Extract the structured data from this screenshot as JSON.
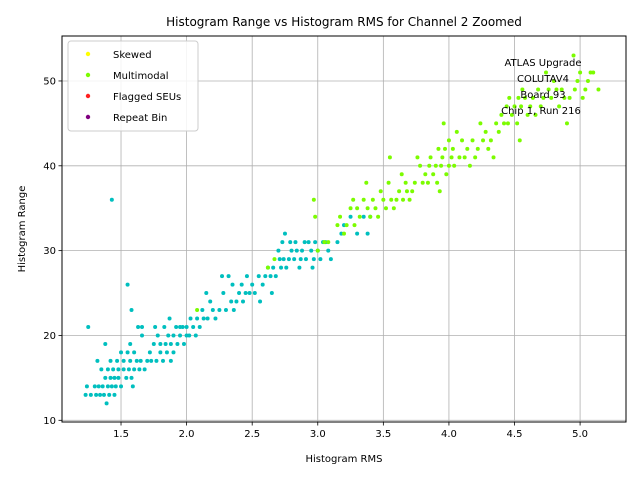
{
  "chart_data": {
    "type": "scatter",
    "title": "Histogram Range vs Histogram RMS for Channel 2 Zoomed",
    "xlabel": "Histogram RMS",
    "ylabel": "Histogram Range",
    "xlim": [
      1.05,
      5.35
    ],
    "ylim": [
      9.8,
      55.3
    ],
    "xticks": [
      "1.5",
      "2.0",
      "2.5",
      "3.0",
      "3.5",
      "4.0",
      "4.5",
      "5.0"
    ],
    "xtick_values": [
      1.5,
      2.0,
      2.5,
      3.0,
      3.5,
      4.0,
      4.5,
      5.0
    ],
    "yticks": [
      "10",
      "20",
      "30",
      "40",
      "50"
    ],
    "ytick_values": [
      10,
      20,
      30,
      40,
      50
    ],
    "grid": true,
    "legend_position": "top-left",
    "legend": [
      {
        "label": "Skewed",
        "color": "#ffff00"
      },
      {
        "label": "Multimodal",
        "color": "#7cfc00"
      },
      {
        "label": "Flagged SEUs",
        "color": "#ff2020"
      },
      {
        "label": "Repeat Bin",
        "color": "#800080"
      }
    ],
    "annotation": [
      "ATLAS Upgrade",
      "COLUTAV4",
      "Board 93",
      "Chip 1, Run 216"
    ],
    "series": [
      {
        "color": "#00bfbf",
        "points": [
          [
            1.23,
            13
          ],
          [
            1.24,
            14
          ],
          [
            1.25,
            21
          ],
          [
            1.27,
            13
          ],
          [
            1.3,
            14
          ],
          [
            1.31,
            13
          ],
          [
            1.32,
            17
          ],
          [
            1.33,
            14
          ],
          [
            1.34,
            13
          ],
          [
            1.35,
            16
          ],
          [
            1.36,
            14
          ],
          [
            1.37,
            13
          ],
          [
            1.38,
            15
          ],
          [
            1.38,
            19
          ],
          [
            1.39,
            12
          ],
          [
            1.4,
            14
          ],
          [
            1.4,
            16
          ],
          [
            1.41,
            13
          ],
          [
            1.42,
            15
          ],
          [
            1.42,
            17
          ],
          [
            1.43,
            14
          ],
          [
            1.43,
            36
          ],
          [
            1.44,
            16
          ],
          [
            1.45,
            13
          ],
          [
            1.45,
            15
          ],
          [
            1.46,
            14
          ],
          [
            1.47,
            17
          ],
          [
            1.48,
            15
          ],
          [
            1.48,
            16
          ],
          [
            1.5,
            14
          ],
          [
            1.5,
            18
          ],
          [
            1.52,
            16
          ],
          [
            1.52,
            17
          ],
          [
            1.54,
            15
          ],
          [
            1.55,
            26
          ],
          [
            1.55,
            18
          ],
          [
            1.56,
            16
          ],
          [
            1.57,
            19
          ],
          [
            1.57,
            17
          ],
          [
            1.58,
            15
          ],
          [
            1.58,
            23
          ],
          [
            1.59,
            14
          ],
          [
            1.6,
            16
          ],
          [
            1.6,
            18
          ],
          [
            1.62,
            17
          ],
          [
            1.63,
            21
          ],
          [
            1.64,
            16
          ],
          [
            1.65,
            17
          ],
          [
            1.66,
            20
          ],
          [
            1.66,
            21
          ],
          [
            1.68,
            16
          ],
          [
            1.7,
            17
          ],
          [
            1.72,
            18
          ],
          [
            1.73,
            17
          ],
          [
            1.75,
            19
          ],
          [
            1.76,
            21
          ],
          [
            1.77,
            17
          ],
          [
            1.78,
            20
          ],
          [
            1.8,
            18
          ],
          [
            1.8,
            19
          ],
          [
            1.82,
            17
          ],
          [
            1.83,
            21
          ],
          [
            1.84,
            19
          ],
          [
            1.85,
            18
          ],
          [
            1.86,
            20
          ],
          [
            1.87,
            22
          ],
          [
            1.88,
            19
          ],
          [
            1.88,
            17
          ],
          [
            1.9,
            20
          ],
          [
            1.9,
            18
          ],
          [
            1.92,
            21
          ],
          [
            1.93,
            19
          ],
          [
            1.95,
            20
          ],
          [
            1.95,
            21
          ],
          [
            1.97,
            21
          ],
          [
            1.98,
            19
          ],
          [
            2.0,
            20
          ],
          [
            2.0,
            21
          ],
          [
            2.02,
            20
          ],
          [
            2.03,
            22
          ],
          [
            2.05,
            21
          ],
          [
            2.07,
            20
          ],
          [
            2.08,
            22
          ],
          [
            2.1,
            21
          ],
          [
            2.12,
            23
          ],
          [
            2.13,
            22
          ],
          [
            2.15,
            25
          ],
          [
            2.16,
            22
          ],
          [
            2.18,
            24
          ],
          [
            2.2,
            23
          ],
          [
            2.22,
            22
          ],
          [
            2.25,
            23
          ],
          [
            2.27,
            27
          ],
          [
            2.28,
            25
          ],
          [
            2.3,
            23
          ],
          [
            2.32,
            27
          ],
          [
            2.34,
            24
          ],
          [
            2.35,
            26
          ],
          [
            2.36,
            23
          ],
          [
            2.38,
            24
          ],
          [
            2.4,
            25
          ],
          [
            2.42,
            26
          ],
          [
            2.43,
            24
          ],
          [
            2.45,
            25
          ],
          [
            2.46,
            27
          ],
          [
            2.48,
            25
          ],
          [
            2.5,
            26
          ],
          [
            2.52,
            25
          ],
          [
            2.55,
            27
          ],
          [
            2.56,
            24
          ],
          [
            2.58,
            26
          ],
          [
            2.6,
            27
          ],
          [
            2.62,
            28
          ],
          [
            2.64,
            27
          ],
          [
            2.65,
            25
          ],
          [
            2.66,
            28
          ],
          [
            2.68,
            27
          ],
          [
            2.7,
            30
          ],
          [
            2.71,
            29
          ],
          [
            2.72,
            28
          ],
          [
            2.73,
            31
          ],
          [
            2.74,
            29
          ],
          [
            2.75,
            32
          ],
          [
            2.76,
            28
          ],
          [
            2.78,
            29
          ],
          [
            2.79,
            31
          ],
          [
            2.8,
            30
          ],
          [
            2.82,
            29
          ],
          [
            2.83,
            31
          ],
          [
            2.84,
            30
          ],
          [
            2.86,
            28
          ],
          [
            2.87,
            29
          ],
          [
            2.88,
            30
          ],
          [
            2.9,
            31
          ],
          [
            2.91,
            29
          ],
          [
            2.93,
            31
          ],
          [
            2.95,
            30
          ],
          [
            2.96,
            28
          ],
          [
            2.97,
            29
          ],
          [
            2.98,
            31
          ],
          [
            3.0,
            30
          ],
          [
            3.02,
            29
          ],
          [
            3.04,
            31
          ],
          [
            3.06,
            31
          ],
          [
            3.08,
            30
          ],
          [
            3.1,
            29
          ],
          [
            3.15,
            31
          ],
          [
            3.18,
            32
          ],
          [
            3.2,
            33
          ],
          [
            3.25,
            34
          ],
          [
            3.3,
            32
          ],
          [
            3.35,
            34
          ],
          [
            3.38,
            32
          ],
          [
            3.4,
            34
          ]
        ]
      },
      {
        "color": "#7cfc00",
        "points": [
          [
            2.08,
            23
          ],
          [
            2.62,
            28
          ],
          [
            2.67,
            29
          ],
          [
            2.97,
            36
          ],
          [
            2.98,
            34
          ],
          [
            3.0,
            30
          ],
          [
            3.05,
            31
          ],
          [
            3.08,
            31
          ],
          [
            3.15,
            33
          ],
          [
            3.17,
            34
          ],
          [
            3.2,
            32
          ],
          [
            3.22,
            33
          ],
          [
            3.25,
            35
          ],
          [
            3.27,
            36
          ],
          [
            3.28,
            33
          ],
          [
            3.3,
            35
          ],
          [
            3.32,
            34
          ],
          [
            3.35,
            36
          ],
          [
            3.37,
            38
          ],
          [
            3.38,
            35
          ],
          [
            3.4,
            34
          ],
          [
            3.42,
            36
          ],
          [
            3.44,
            35
          ],
          [
            3.46,
            34
          ],
          [
            3.48,
            37
          ],
          [
            3.5,
            36
          ],
          [
            3.52,
            35
          ],
          [
            3.54,
            38
          ],
          [
            3.55,
            41
          ],
          [
            3.56,
            36
          ],
          [
            3.58,
            35
          ],
          [
            3.6,
            36
          ],
          [
            3.62,
            37
          ],
          [
            3.64,
            39
          ],
          [
            3.65,
            36
          ],
          [
            3.67,
            38
          ],
          [
            3.68,
            37
          ],
          [
            3.7,
            36
          ],
          [
            3.72,
            37
          ],
          [
            3.74,
            38
          ],
          [
            3.76,
            41
          ],
          [
            3.78,
            40
          ],
          [
            3.8,
            38
          ],
          [
            3.82,
            39
          ],
          [
            3.84,
            38
          ],
          [
            3.85,
            40
          ],
          [
            3.86,
            41
          ],
          [
            3.88,
            39
          ],
          [
            3.9,
            40
          ],
          [
            3.91,
            38
          ],
          [
            3.92,
            42
          ],
          [
            3.93,
            37
          ],
          [
            3.94,
            40
          ],
          [
            3.95,
            41
          ],
          [
            3.96,
            45
          ],
          [
            3.97,
            42
          ],
          [
            3.98,
            39
          ],
          [
            4.0,
            40
          ],
          [
            4.0,
            43
          ],
          [
            4.02,
            41
          ],
          [
            4.03,
            42
          ],
          [
            4.04,
            40
          ],
          [
            4.06,
            44
          ],
          [
            4.08,
            41
          ],
          [
            4.1,
            43
          ],
          [
            4.12,
            41
          ],
          [
            4.14,
            42
          ],
          [
            4.16,
            40
          ],
          [
            4.18,
            43
          ],
          [
            4.2,
            41
          ],
          [
            4.22,
            42
          ],
          [
            4.24,
            45
          ],
          [
            4.26,
            43
          ],
          [
            4.28,
            44
          ],
          [
            4.3,
            42
          ],
          [
            4.32,
            43
          ],
          [
            4.34,
            41
          ],
          [
            4.36,
            45
          ],
          [
            4.38,
            44
          ],
          [
            4.4,
            46
          ],
          [
            4.42,
            45
          ],
          [
            4.44,
            47
          ],
          [
            4.45,
            45
          ],
          [
            4.46,
            48
          ],
          [
            4.48,
            46
          ],
          [
            4.5,
            47
          ],
          [
            4.52,
            45
          ],
          [
            4.53,
            48
          ],
          [
            4.54,
            43
          ],
          [
            4.55,
            47
          ],
          [
            4.56,
            49
          ],
          [
            4.58,
            48
          ],
          [
            4.6,
            46
          ],
          [
            4.62,
            47
          ],
          [
            4.64,
            48
          ],
          [
            4.66,
            46
          ],
          [
            4.68,
            49
          ],
          [
            4.7,
            47
          ],
          [
            4.72,
            48
          ],
          [
            4.74,
            51
          ],
          [
            4.76,
            49
          ],
          [
            4.78,
            48
          ],
          [
            4.8,
            50
          ],
          [
            4.82,
            49
          ],
          [
            4.84,
            47
          ],
          [
            4.86,
            49
          ],
          [
            4.88,
            48
          ],
          [
            4.9,
            45
          ],
          [
            4.92,
            48
          ],
          [
            4.95,
            53
          ],
          [
            4.96,
            49
          ],
          [
            4.98,
            50
          ],
          [
            5.0,
            51
          ],
          [
            5.02,
            48
          ],
          [
            5.04,
            49
          ],
          [
            5.06,
            50
          ],
          [
            5.08,
            51
          ],
          [
            5.1,
            51
          ],
          [
            5.14,
            49
          ]
        ]
      }
    ]
  }
}
